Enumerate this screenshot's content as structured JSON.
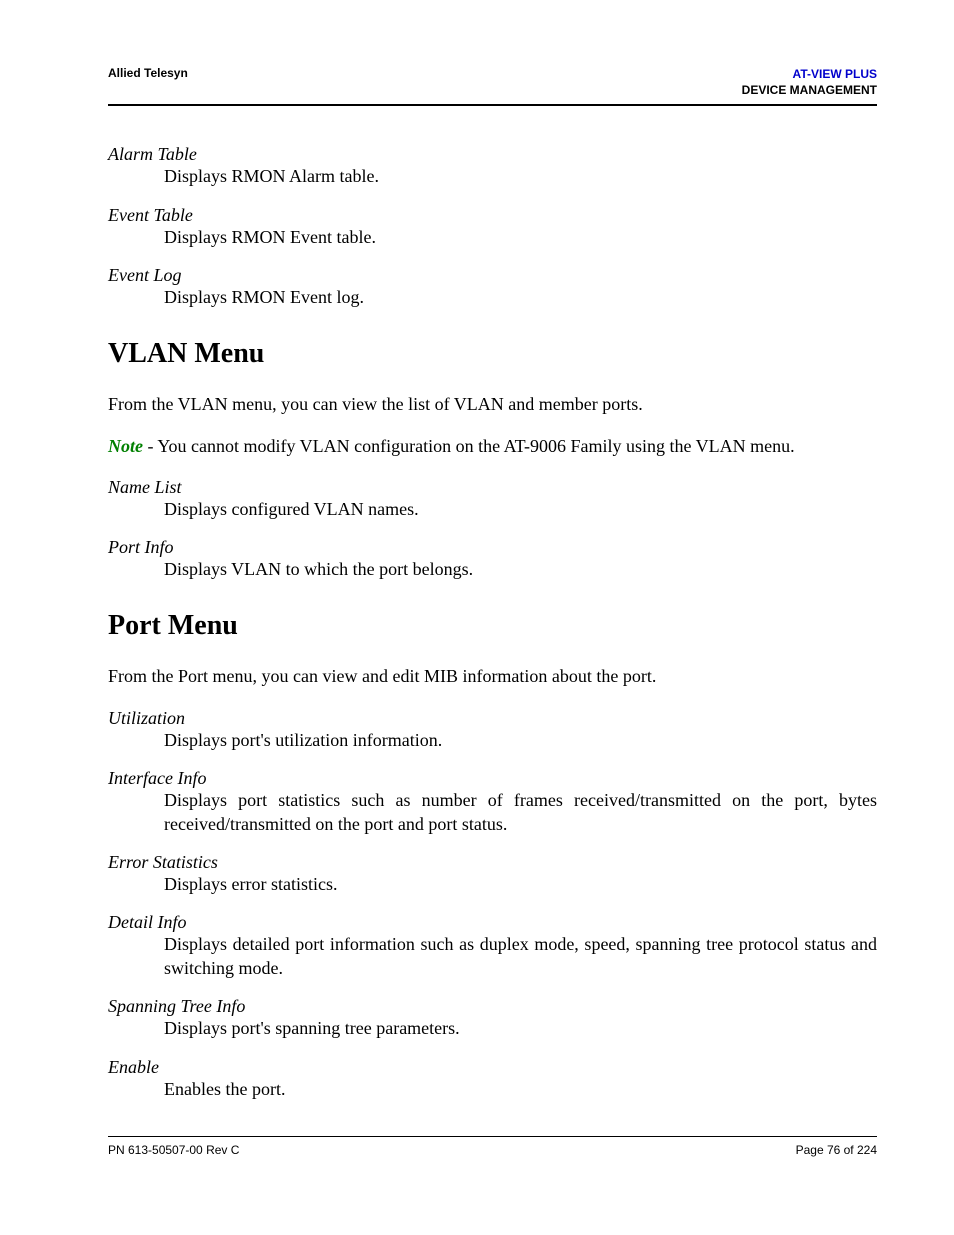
{
  "header": {
    "left": "Allied Telesyn",
    "right_line1": "AT-VIEW PLUS",
    "right_line2": "DEVICE MANAGEMENT"
  },
  "rmon_items": [
    {
      "term": "Alarm Table",
      "desc": "Displays RMON Alarm table."
    },
    {
      "term": "Event Table",
      "desc": "Displays RMON Event table."
    },
    {
      "term": "Event Log",
      "desc": "Displays RMON Event log."
    }
  ],
  "vlan": {
    "heading": "VLAN Menu",
    "intro": "From the VLAN menu, you can view the list of VLAN and member ports.",
    "note_label": "Note",
    "note_text": " - You cannot modify VLAN configuration on the AT-9006 Family using the VLAN menu.",
    "items": [
      {
        "term": "Name List",
        "desc": "Displays configured VLAN names."
      },
      {
        "term": "Port Info",
        "desc": "Displays VLAN to which the port belongs."
      }
    ]
  },
  "port": {
    "heading": "Port Menu",
    "intro": "From the Port menu, you can view and edit MIB information about the port.",
    "items": [
      {
        "term": "Utilization",
        "desc": "Displays port's utilization information.",
        "justify": false
      },
      {
        "term": "Interface Info",
        "desc": "Displays port statistics such as number of frames received/transmitted on the port, bytes received/transmitted on the port and port status.",
        "justify": true
      },
      {
        "term": "Error Statistics",
        "desc": "Displays error statistics.",
        "justify": false
      },
      {
        "term": "Detail Info",
        "desc": "Displays detailed port information such as duplex mode, speed, spanning tree protocol status and switching mode.",
        "justify": true
      },
      {
        "term": "Spanning Tree Info",
        "desc": "Displays port's spanning tree parameters.",
        "justify": false
      },
      {
        "term": "Enable",
        "desc": "Enables the port.",
        "justify": false
      }
    ]
  },
  "footer": {
    "left": "PN 613-50507-00 Rev C",
    "right": "Page 76 of 224"
  },
  "colors": {
    "note_green": "#008000",
    "header_blue": "#0000cc",
    "text": "#000000",
    "background": "#ffffff"
  },
  "typography": {
    "body_font": "Times New Roman",
    "header_font": "Verdana",
    "body_size_pt": 13,
    "heading_size_pt": 21,
    "header_size_pt": 9
  }
}
